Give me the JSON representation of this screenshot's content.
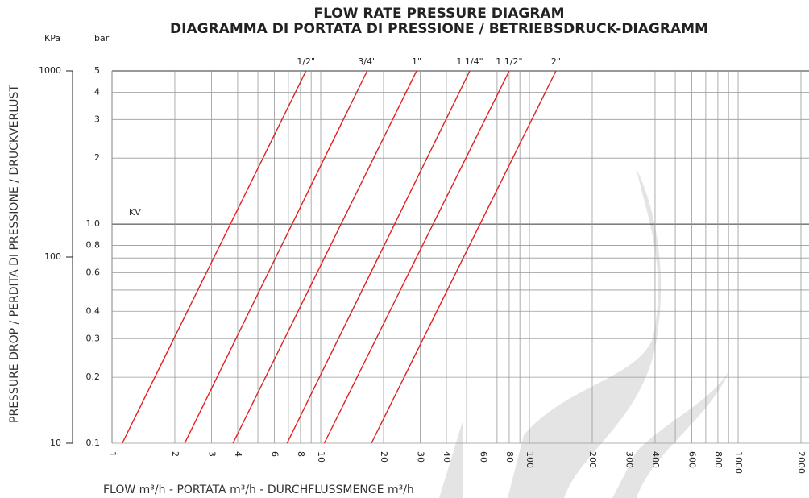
{
  "chart_data": {
    "type": "line",
    "title": "FLOW RATE PRESSURE DIAGRAM",
    "subtitle": "DIAGRAMMA DI PORTATA DI PRESSIONE / BETRIEBSDRUCK-DIAGRAMM",
    "x_label": "FLOW m³/h - PORTATA  m³/h - DURCHFLUSSMENGE m³/h",
    "y_label": "PRESSURE DROP / PERDITA DI PRESSIONE / DRUCKVERLUST",
    "y_unit": "bar",
    "y2_unit": "KPa",
    "annotation": "KV",
    "log_x": true,
    "log_y": true,
    "grid": true,
    "xlim": [
      1,
      2000
    ],
    "ylim": [
      0.1,
      5
    ],
    "y2lim": [
      10,
      1000
    ],
    "xticks": [
      1,
      2,
      3,
      4,
      6,
      8,
      10,
      20,
      30,
      40,
      60,
      80,
      100,
      200,
      300,
      400,
      600,
      800,
      1000,
      2000
    ],
    "xgrid_minor": [
      5,
      7,
      9,
      50,
      70,
      90,
      500,
      700,
      900
    ],
    "yticks": [
      0.1,
      0.2,
      0.3,
      0.4,
      0.6,
      0.8,
      {
        "value": 1,
        "label": "1.0"
      },
      2,
      3,
      4,
      5
    ],
    "ygrid_minor": [
      0.5,
      0.7,
      0.9
    ],
    "y2ticks": [
      10,
      100,
      1000
    ],
    "series": [
      {
        "name": "1/2\"",
        "color": "#e02020",
        "x": [
          1.12,
          8.5
        ],
        "values": [
          0.1,
          5
        ]
      },
      {
        "name": "3/4\"",
        "color": "#e02020",
        "x": [
          2.23,
          16.7
        ],
        "values": [
          0.1,
          5
        ]
      },
      {
        "name": "1\"",
        "color": "#e02020",
        "x": [
          3.8,
          28.8
        ],
        "values": [
          0.1,
          5
        ]
      },
      {
        "name": "1 1/4\"",
        "color": "#e02020",
        "x": [
          6.9,
          51.8
        ],
        "values": [
          0.1,
          5
        ]
      },
      {
        "name": "1 1/2\"",
        "color": "#e02020",
        "x": [
          10.4,
          80
        ],
        "values": [
          0.1,
          5
        ]
      },
      {
        "name": "2\"",
        "color": "#e02020",
        "x": [
          17.5,
          134
        ],
        "values": [
          0.1,
          5
        ]
      }
    ]
  }
}
